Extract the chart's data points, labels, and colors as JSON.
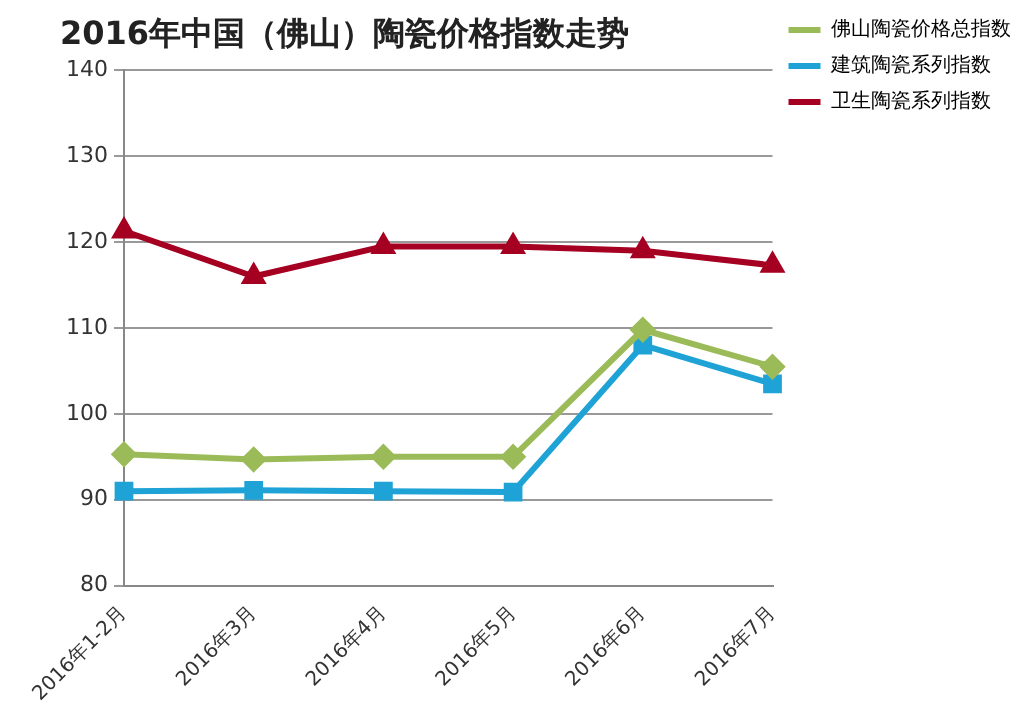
{
  "chart_data": {
    "type": "line",
    "title": "2016年中国（佛山）陶瓷价格指数走势",
    "categories": [
      "2016年1-2月",
      "2016年3月",
      "2016年4月",
      "2016年5月",
      "2016年6月",
      "2016年7月"
    ],
    "series": [
      {
        "name": "佛山陶瓷价格总指数",
        "color": "#9bbb59",
        "marker": "diamond",
        "values": [
          95.3,
          94.7,
          95.0,
          95.0,
          109.8,
          105.5
        ]
      },
      {
        "name": "建筑陶瓷系列指数",
        "color": "#1fa3d6",
        "marker": "square",
        "values": [
          91.0,
          91.1,
          91.0,
          90.9,
          108.0,
          103.5
        ]
      },
      {
        "name": "卫生陶瓷系列指数",
        "color": "#a50021",
        "marker": "triangle",
        "values": [
          121.3,
          116.0,
          119.5,
          119.5,
          119.0,
          117.3
        ]
      }
    ],
    "ylim": [
      80,
      140
    ],
    "yticks": [
      80,
      90,
      100,
      110,
      120,
      130,
      140
    ],
    "grid": "y",
    "legend": "top right"
  }
}
